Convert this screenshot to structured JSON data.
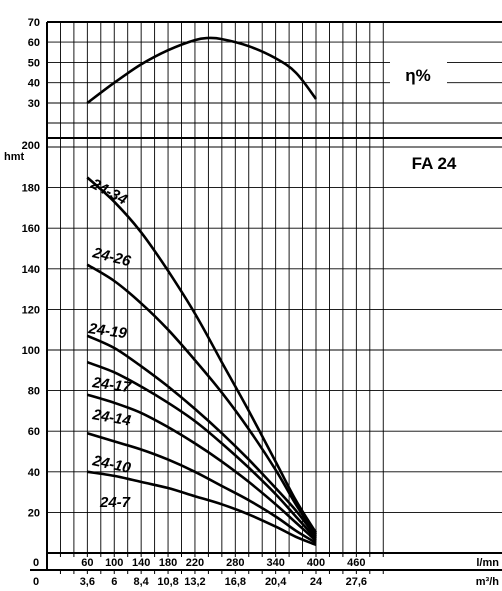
{
  "chart_data": {
    "type": "line",
    "model_label": "FA 24",
    "efficiency_label": "η%",
    "y_unit_label": "hmt",
    "x_unit_lmn": "l/mn",
    "x_unit_m3h": "m³/h",
    "x_ticks_lmn": [
      "60",
      "100",
      "140",
      "180",
      "220",
      "280",
      "340",
      "400",
      "460"
    ],
    "x_ticks_m3h": [
      "0",
      "3,6",
      "6",
      "8,4",
      "10,8",
      "13,2",
      "16,8",
      "20,4",
      "24",
      "27,6"
    ],
    "x_zero_lmn": "0",
    "y_ticks_head": [
      "20",
      "40",
      "60",
      "80",
      "100",
      "120",
      "140",
      "160",
      "180",
      "200"
    ],
    "y_ticks_eff": [
      "30",
      "40",
      "50",
      "60",
      "70"
    ],
    "xlim": [
      0,
      520
    ],
    "ylim_head": [
      0,
      200
    ],
    "ylim_eff": [
      20,
      70
    ],
    "grid": true,
    "efficiency_curve": {
      "x": [
        60,
        100,
        140,
        180,
        220,
        240,
        260,
        300,
        340,
        370,
        400
      ],
      "y": [
        30,
        40,
        49,
        56,
        61,
        62,
        61.5,
        58,
        52,
        45,
        32
      ]
    },
    "series": [
      {
        "name": "24-34",
        "x": [
          60,
          100,
          140,
          180,
          220,
          260,
          300,
          340,
          370,
          400
        ],
        "y": [
          185,
          173,
          158,
          139,
          118,
          94,
          70,
          45,
          26,
          10
        ]
      },
      {
        "name": "24-26",
        "x": [
          60,
          100,
          140,
          180,
          220,
          260,
          300,
          340,
          370,
          400
        ],
        "y": [
          142,
          134,
          123,
          110,
          95,
          79,
          61,
          41,
          24,
          9
        ]
      },
      {
        "name": "24-19",
        "x": [
          60,
          100,
          140,
          180,
          220,
          260,
          300,
          340,
          370,
          400
        ],
        "y": [
          107,
          101,
          92,
          82,
          71,
          59,
          46,
          32,
          21,
          8
        ]
      },
      {
        "name": "24-17",
        "x": [
          60,
          100,
          140,
          180,
          220,
          260,
          300,
          340,
          370,
          400
        ],
        "y": [
          94,
          89,
          82,
          74,
          65,
          54,
          42,
          29,
          18,
          7
        ]
      },
      {
        "name": "24-14",
        "x": [
          60,
          100,
          140,
          180,
          220,
          260,
          300,
          340,
          370,
          400
        ],
        "y": [
          78,
          74,
          69,
          62,
          54,
          45,
          35,
          24,
          15,
          6
        ]
      },
      {
        "name": "24-10",
        "x": [
          60,
          100,
          140,
          180,
          220,
          260,
          300,
          340,
          370,
          400
        ],
        "y": [
          59,
          55,
          51,
          46,
          40,
          33,
          26,
          18,
          11,
          5
        ]
      },
      {
        "name": "24-7",
        "x": [
          60,
          100,
          140,
          180,
          220,
          260,
          300,
          340,
          370,
          400
        ],
        "y": [
          40,
          38,
          35,
          32,
          28,
          24,
          19,
          13,
          8,
          4
        ]
      }
    ]
  }
}
